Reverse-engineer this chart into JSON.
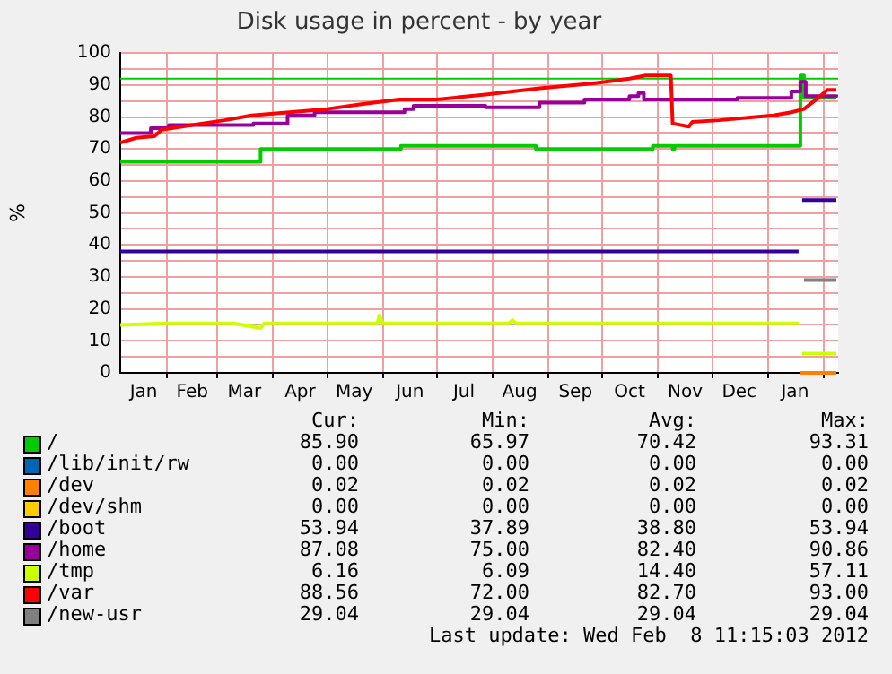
{
  "chart_data": {
    "type": "line",
    "title": "Disk usage in percent - by year",
    "ylabel": "%",
    "xlim": [
      "2011-01-06",
      "2012-02-09"
    ],
    "xticks": [
      {
        "value": "2011-01-19",
        "label": "Jan"
      },
      {
        "value": "2011-02-01",
        "label": null
      },
      {
        "value": "2011-02-15",
        "label": "Feb"
      },
      {
        "value": "2011-03-01",
        "label": null
      },
      {
        "value": "2011-03-16",
        "label": "Mar"
      },
      {
        "value": "2011-04-01",
        "label": null
      },
      {
        "value": "2011-04-16",
        "label": "Apr"
      },
      {
        "value": "2011-05-01",
        "label": null
      },
      {
        "value": "2011-05-16",
        "label": "May"
      },
      {
        "value": "2011-06-01",
        "label": null
      },
      {
        "value": "2011-06-16",
        "label": "Jun"
      },
      {
        "value": "2011-07-01",
        "label": null
      },
      {
        "value": "2011-07-16",
        "label": "Jul"
      },
      {
        "value": "2011-08-01",
        "label": null
      },
      {
        "value": "2011-08-16",
        "label": "Aug"
      },
      {
        "value": "2011-09-01",
        "label": null
      },
      {
        "value": "2011-09-16",
        "label": "Sep"
      },
      {
        "value": "2011-10-01",
        "label": null
      },
      {
        "value": "2011-10-16",
        "label": "Oct"
      },
      {
        "value": "2011-11-01",
        "label": null
      },
      {
        "value": "2011-11-16",
        "label": "Nov"
      },
      {
        "value": "2011-12-01",
        "label": null
      },
      {
        "value": "2011-12-16",
        "label": "Dec"
      },
      {
        "value": "2012-01-01",
        "label": null
      },
      {
        "value": "2012-01-16",
        "label": "Jan"
      },
      {
        "value": "2012-02-01",
        "label": null
      }
    ],
    "ylim": [
      0,
      100
    ],
    "yticks": [
      0,
      {
        "value": 5,
        "label": null
      },
      10,
      {
        "value": 15,
        "label": null
      },
      20,
      {
        "value": 25,
        "label": null
      },
      30,
      {
        "value": 35,
        "label": null
      },
      40,
      {
        "value": 45,
        "label": null
      },
      50,
      {
        "value": 55,
        "label": null
      },
      60,
      {
        "value": 65,
        "label": null
      },
      70,
      {
        "value": 75,
        "label": null
      },
      80,
      {
        "value": 85,
        "label": null
      },
      90,
      {
        "value": 95,
        "label": null
      },
      100
    ],
    "grid": true,
    "legend": "bottom",
    "marker": "none",
    "ref_lines": [
      {
        "axis": "y",
        "value": 92,
        "color": "#00cc00"
      }
    ],
    "series": [
      {
        "name": "/",
        "color": "#00cc00",
        "type": "step",
        "x": [
          "2011-01-06",
          "2011-03-25",
          "2011-06-11",
          "2011-08-25",
          "2011-10-29",
          "2011-11-09",
          "2011-11-10",
          "2012-01-19",
          "2012-01-21",
          "2012-02-08"
        ],
        "values": [
          66,
          70,
          71,
          70,
          71,
          70,
          71,
          93,
          86,
          86
        ]
      },
      {
        "name": "/lib/init/rw",
        "color": "#0066b3"
      },
      {
        "name": "/dev",
        "color": "#ff8000",
        "x": [
          "2012-01-19",
          "2012-02-08"
        ],
        "values": [
          0,
          0
        ]
      },
      {
        "name": "/dev/shm",
        "color": "#ffcc00"
      },
      {
        "name": "/boot",
        "color": "#330099",
        "x": [
          "2011-01-06",
          "2012-01-18",
          "2012-01-19",
          "2012-01-20",
          "2012-02-08"
        ],
        "values": [
          38,
          38,
          null,
          54,
          54
        ]
      },
      {
        "name": "/home",
        "color": "#990099",
        "type": "step",
        "x": [
          "2011-01-06",
          "2011-01-23",
          "2011-02-02",
          "2011-03-21",
          "2011-04-09",
          "2011-04-24",
          "2011-06-13",
          "2011-06-18",
          "2011-07-28",
          "2011-08-27",
          "2011-09-21",
          "2011-10-16",
          "2011-10-21",
          "2011-10-24",
          "2011-12-15",
          "2012-01-14",
          "2012-01-19",
          "2012-01-22",
          "2012-02-08"
        ],
        "values": [
          75,
          76.5,
          77.5,
          78,
          80.5,
          81.5,
          82.5,
          83.5,
          83,
          84.5,
          85.5,
          86.5,
          87.5,
          85.5,
          86,
          88,
          91,
          86.5,
          87
        ]
      },
      {
        "name": "/tmp",
        "color": "#ccff00",
        "x": [
          "2011-01-06",
          "2011-02-01",
          "2011-03-10",
          "2011-03-25",
          "2011-03-27",
          "2011-05-29",
          "2011-05-30",
          "2011-06-01",
          "2011-08-10",
          "2011-08-12",
          "2011-08-14",
          "2012-01-18",
          "2012-01-19",
          "2012-01-20",
          "2012-02-08"
        ],
        "values": [
          15,
          15.5,
          15.5,
          14,
          15.5,
          15.5,
          18,
          15.5,
          15.5,
          16.5,
          15.5,
          15.5,
          null,
          6,
          6
        ]
      },
      {
        "name": "/var",
        "color": "#ff0000",
        "x": [
          "2011-01-06",
          "2011-01-15",
          "2011-01-25",
          "2011-01-29",
          "2011-02-15",
          "2011-03-05",
          "2011-03-20",
          "2011-04-10",
          "2011-05-01",
          "2011-05-20",
          "2011-06-10",
          "2011-07-01",
          "2011-07-28",
          "2011-08-27",
          "2011-09-26",
          "2011-10-16",
          "2011-10-25",
          "2011-11-08",
          "2011-11-09",
          "2011-11-18",
          "2011-11-20",
          "2011-12-05",
          "2011-12-25",
          "2012-01-04",
          "2012-01-14",
          "2012-01-21",
          "2012-01-29",
          "2012-02-03",
          "2012-02-08"
        ],
        "values": [
          72,
          73.5,
          74,
          76,
          77.5,
          79,
          80.5,
          81.5,
          82.5,
          84,
          85.5,
          85.5,
          87,
          89,
          90.5,
          92,
          93,
          93,
          78,
          77,
          78.5,
          79,
          80,
          80.5,
          81.5,
          82.5,
          86,
          88.5,
          88.5
        ]
      },
      {
        "name": "/new-usr",
        "color": "#808080",
        "x": [
          "2012-01-21",
          "2012-02-08"
        ],
        "values": [
          29,
          29
        ]
      }
    ],
    "annotations": [
      "Cur:",
      "Min:",
      "Avg:",
      "Max:",
      "85.90",
      "65.97",
      "70.42",
      "93.31",
      "0.00",
      "0.00",
      "0.00",
      "0.00",
      "0.02",
      "0.02",
      "0.02",
      "0.02",
      "0.00",
      "0.00",
      "0.00",
      "0.00",
      "53.94",
      "37.89",
      "38.80",
      "53.94",
      "87.08",
      "75.00",
      "82.40",
      "90.86",
      "6.16",
      "6.09",
      "14.40",
      "57.11",
      "88.56",
      "72.00",
      "82.70",
      "93.00",
      "29.04",
      "29.04",
      "29.04",
      "29.04",
      "Last update: Wed Feb  8 11:15:03 2012"
    ]
  }
}
